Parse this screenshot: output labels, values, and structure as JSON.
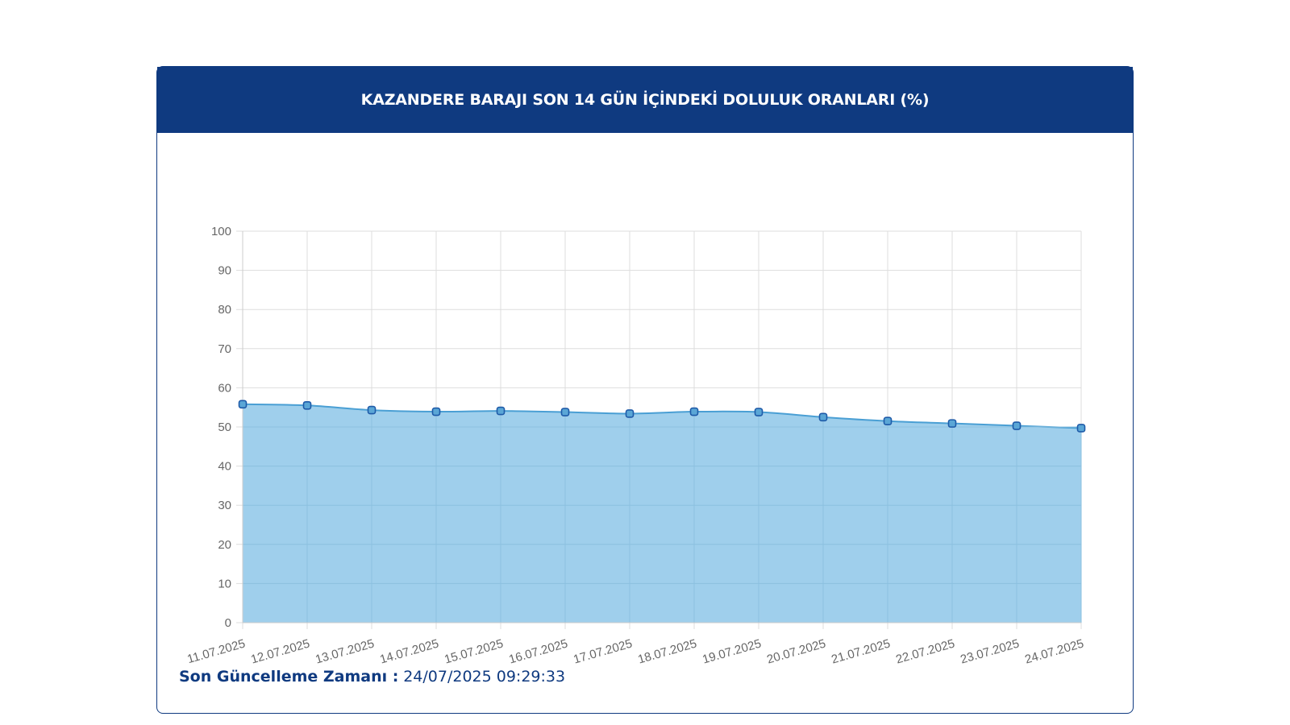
{
  "header": {
    "title": "KAZANDERE BARAJI SON 14 GÜN İÇİNDEKİ DOLULUK ORANLARI (%)"
  },
  "footer": {
    "label": "Son Güncelleme Zamanı :",
    "value": "24/07/2025 09:29:33"
  },
  "colors": {
    "header_bg": "#0f3a80",
    "area_fill": "#9fcfec",
    "line": "#4a9fd4",
    "point_fill": "#5aa6d6",
    "point_stroke": "#1e5aa8",
    "grid": "#dddddd"
  },
  "chart_data": {
    "type": "area",
    "title": "KAZANDERE BARAJI SON 14 GÜN İÇİNDEKİ DOLULUK ORANLARI (%)",
    "xlabel": "",
    "ylabel": "",
    "ylim": [
      0,
      100
    ],
    "yticks": [
      0,
      10,
      20,
      30,
      40,
      50,
      60,
      70,
      80,
      90,
      100
    ],
    "grid": true,
    "legend": "none",
    "categories": [
      "11.07.2025",
      "12.07.2025",
      "13.07.2025",
      "14.07.2025",
      "15.07.2025",
      "16.07.2025",
      "17.07.2025",
      "18.07.2025",
      "19.07.2025",
      "20.07.2025",
      "21.07.2025",
      "22.07.2025",
      "23.07.2025",
      "24.07.2025"
    ],
    "series": [
      {
        "values": [
          55.8,
          55.5,
          54.3,
          53.9,
          54.1,
          53.8,
          53.4,
          53.9,
          53.8,
          52.5,
          51.5,
          50.9,
          50.3,
          49.7
        ]
      }
    ]
  }
}
